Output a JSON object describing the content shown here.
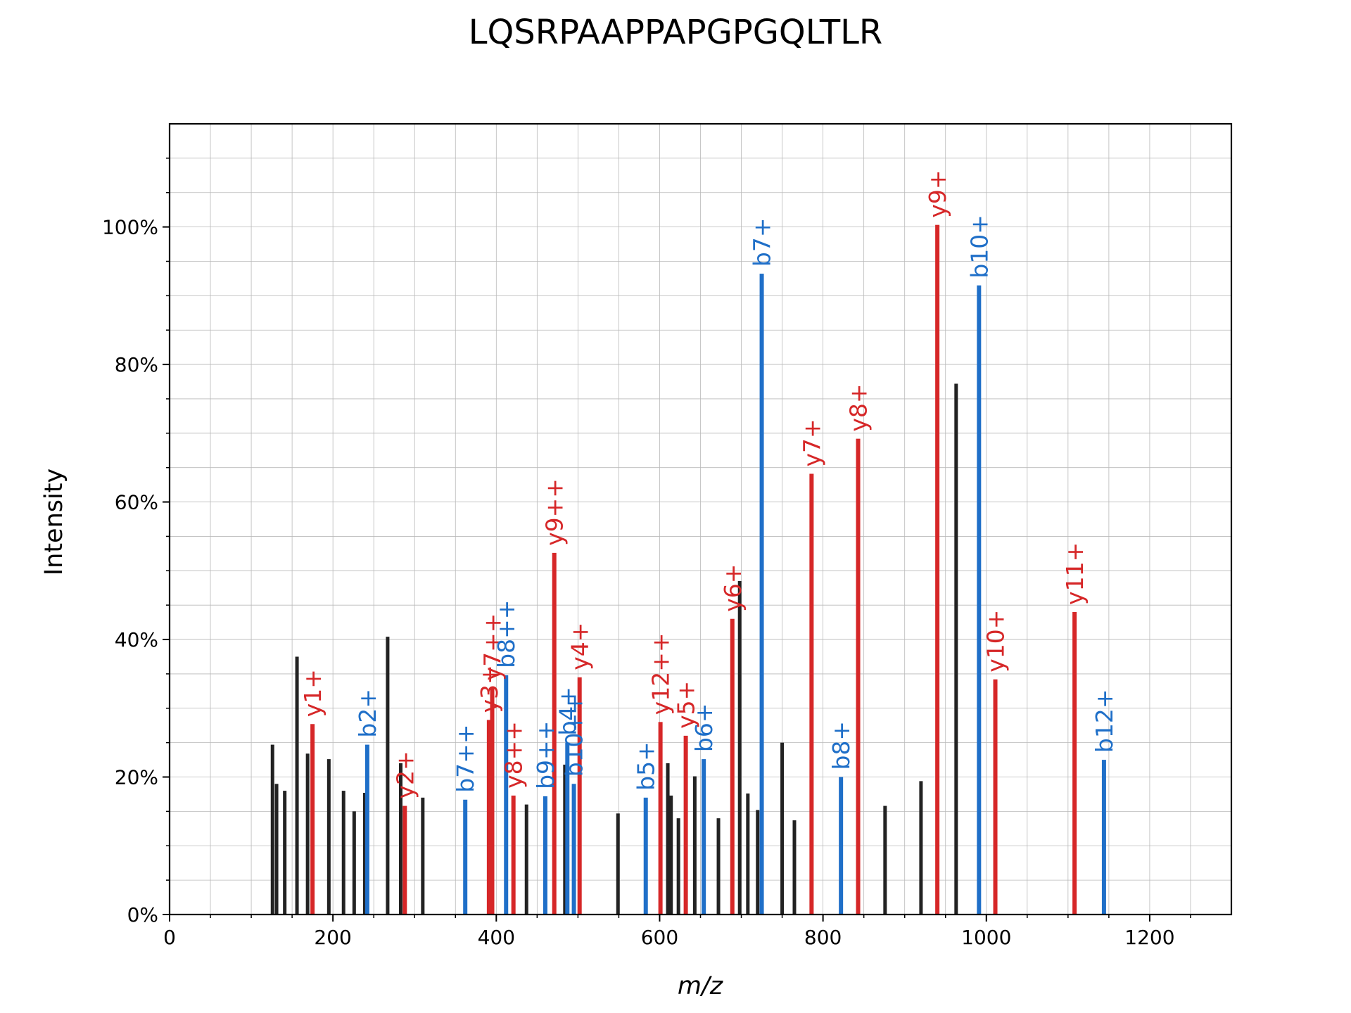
{
  "chart_data": {
    "type": "bar",
    "title": "LQSRPAAPPAPGPGQLTLR",
    "xlabel": "m/z",
    "ylabel": "Intensity",
    "xlim": [
      0,
      1300
    ],
    "ylim": [
      0,
      1.15
    ],
    "x_ticks": [
      0,
      200,
      400,
      600,
      800,
      1000,
      1200
    ],
    "x_tick_labels": [
      "0",
      "200",
      "400",
      "600",
      "800",
      "1000",
      "1200"
    ],
    "y_ticks": [
      0,
      0.2,
      0.4,
      0.6,
      0.8,
      1.0
    ],
    "y_tick_labels": [
      "0%",
      "20%",
      "40%",
      "60%",
      "80%",
      "100%"
    ],
    "grid": true,
    "colors": {
      "y_ion": "#d62728",
      "b_ion": "#1f6fc8",
      "unannotated": "#222222"
    },
    "peaks": [
      {
        "mz": 126,
        "intensity": 0.247,
        "ion": "none"
      },
      {
        "mz": 131,
        "intensity": 0.19,
        "ion": "none"
      },
      {
        "mz": 141,
        "intensity": 0.18,
        "ion": "none"
      },
      {
        "mz": 156,
        "intensity": 0.375,
        "ion": "none"
      },
      {
        "mz": 169,
        "intensity": 0.234,
        "ion": "none"
      },
      {
        "mz": 175,
        "intensity": 0.277,
        "ion": "y",
        "label": "y1+"
      },
      {
        "mz": 195,
        "intensity": 0.226,
        "ion": "none"
      },
      {
        "mz": 213,
        "intensity": 0.18,
        "ion": "none"
      },
      {
        "mz": 226,
        "intensity": 0.15,
        "ion": "none"
      },
      {
        "mz": 239,
        "intensity": 0.177,
        "ion": "none"
      },
      {
        "mz": 242,
        "intensity": 0.247,
        "ion": "b",
        "label": "b2+"
      },
      {
        "mz": 267,
        "intensity": 0.404,
        "ion": "none"
      },
      {
        "mz": 283,
        "intensity": 0.22,
        "ion": "none"
      },
      {
        "mz": 288,
        "intensity": 0.158,
        "ion": "y",
        "label": "y2+"
      },
      {
        "mz": 310,
        "intensity": 0.17,
        "ion": "none"
      },
      {
        "mz": 362,
        "intensity": 0.167,
        "ion": "b",
        "label": "b7++"
      },
      {
        "mz": 391,
        "intensity": 0.283,
        "ion": "y",
        "label": "y3+"
      },
      {
        "mz": 395,
        "intensity": 0.33,
        "ion": "y",
        "label": "y7++"
      },
      {
        "mz": 412,
        "intensity": 0.348,
        "ion": "b",
        "label": "b8++"
      },
      {
        "mz": 421,
        "intensity": 0.173,
        "ion": "y",
        "label": "y8++"
      },
      {
        "mz": 437,
        "intensity": 0.16,
        "ion": "none"
      },
      {
        "mz": 460,
        "intensity": 0.172,
        "ion": "b",
        "label": "b9++"
      },
      {
        "mz": 471,
        "intensity": 0.526,
        "ion": "y",
        "label": "y9++"
      },
      {
        "mz": 484,
        "intensity": 0.218,
        "ion": "none"
      },
      {
        "mz": 487,
        "intensity": 0.25,
        "ion": "b",
        "label": "b4+"
      },
      {
        "mz": 495,
        "intensity": 0.19,
        "ion": "b",
        "label": "b10++"
      },
      {
        "mz": 502,
        "intensity": 0.345,
        "ion": "y",
        "label": "y4+"
      },
      {
        "mz": 549,
        "intensity": 0.147,
        "ion": "none"
      },
      {
        "mz": 583,
        "intensity": 0.17,
        "ion": "b",
        "label": "b5+"
      },
      {
        "mz": 601,
        "intensity": 0.28,
        "ion": "y",
        "label": "y12++"
      },
      {
        "mz": 610,
        "intensity": 0.22,
        "ion": "none"
      },
      {
        "mz": 614,
        "intensity": 0.173,
        "ion": "none"
      },
      {
        "mz": 623,
        "intensity": 0.14,
        "ion": "none"
      },
      {
        "mz": 632,
        "intensity": 0.26,
        "ion": "y",
        "label": "y5+"
      },
      {
        "mz": 643,
        "intensity": 0.201,
        "ion": "none"
      },
      {
        "mz": 654,
        "intensity": 0.226,
        "ion": "b",
        "label": "b6+"
      },
      {
        "mz": 672,
        "intensity": 0.14,
        "ion": "none"
      },
      {
        "mz": 689,
        "intensity": 0.43,
        "ion": "y",
        "label": "y6+"
      },
      {
        "mz": 698,
        "intensity": 0.485,
        "ion": "none"
      },
      {
        "mz": 708,
        "intensity": 0.176,
        "ion": "none"
      },
      {
        "mz": 720,
        "intensity": 0.152,
        "ion": "none"
      },
      {
        "mz": 725,
        "intensity": 0.932,
        "ion": "b",
        "label": "b7+"
      },
      {
        "mz": 750,
        "intensity": 0.25,
        "ion": "none"
      },
      {
        "mz": 765,
        "intensity": 0.137,
        "ion": "none"
      },
      {
        "mz": 786,
        "intensity": 0.641,
        "ion": "y",
        "label": "y7+"
      },
      {
        "mz": 822,
        "intensity": 0.2,
        "ion": "b",
        "label": "b8+"
      },
      {
        "mz": 843,
        "intensity": 0.692,
        "ion": "y",
        "label": "y8+"
      },
      {
        "mz": 876,
        "intensity": 0.158,
        "ion": "none"
      },
      {
        "mz": 920,
        "intensity": 0.194,
        "ion": "none"
      },
      {
        "mz": 940,
        "intensity": 1.003,
        "ion": "y",
        "label": "y9+"
      },
      {
        "mz": 963,
        "intensity": 0.772,
        "ion": "none"
      },
      {
        "mz": 991,
        "intensity": 0.915,
        "ion": "b",
        "label": "b10+"
      },
      {
        "mz": 1011,
        "intensity": 0.342,
        "ion": "y",
        "label": "y10+"
      },
      {
        "mz": 1108,
        "intensity": 0.44,
        "ion": "y",
        "label": "y11+"
      },
      {
        "mz": 1144,
        "intensity": 0.225,
        "ion": "b",
        "label": "b12+"
      }
    ]
  }
}
